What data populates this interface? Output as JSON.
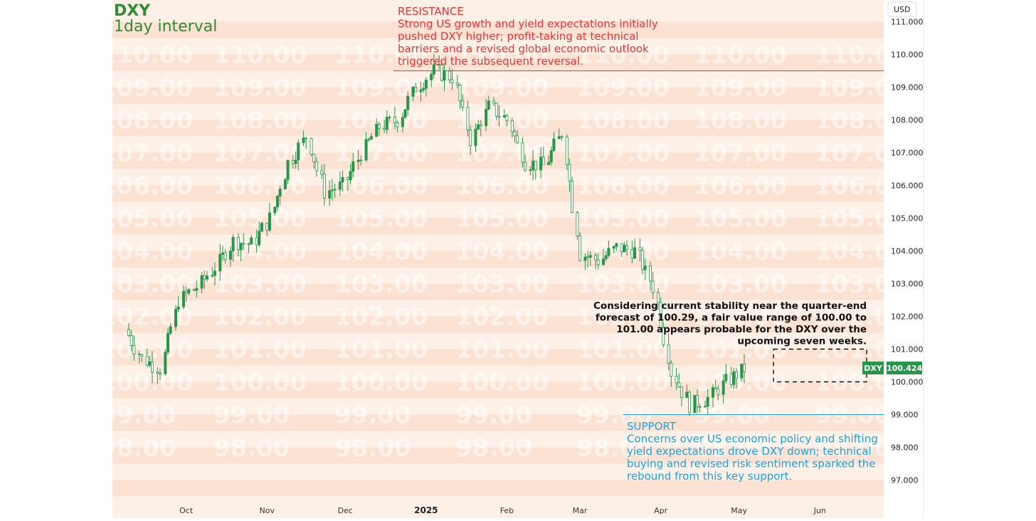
{
  "chart_data": {
    "type": "candlestick",
    "symbol": "DXY",
    "interval": "1day interval",
    "currency": "USD",
    "last_price": "100.424",
    "ylim": [
      96.5,
      111.5
    ],
    "y_ticks": [
      "111.000",
      "110.000",
      "109.000",
      "108.000",
      "107.000",
      "106.000",
      "105.000",
      "104.000",
      "103.000",
      "102.000",
      "101.000",
      "100.000",
      "99.000",
      "98.000",
      "97.000"
    ],
    "x_ticks": [
      {
        "label": "Oct",
        "date": "2024-10-01",
        "bold": false
      },
      {
        "label": "Nov",
        "date": "2024-11-01",
        "bold": false
      },
      {
        "label": "Dec",
        "date": "2024-12-01",
        "bold": false
      },
      {
        "label": "2025",
        "date": "2025-01-01",
        "bold": true
      },
      {
        "label": "Feb",
        "date": "2025-02-01",
        "bold": false
      },
      {
        "label": "Mar",
        "date": "2025-03-01",
        "bold": false
      },
      {
        "label": "Apr",
        "date": "2025-04-01",
        "bold": false
      },
      {
        "label": "May",
        "date": "2025-05-01",
        "bold": false
      },
      {
        "label": "Jun",
        "date": "2025-06-01",
        "bold": false
      }
    ],
    "watermark_levels": [
      "110.00",
      "109.00",
      "108.00",
      "107.00",
      "106.00",
      "105.00",
      "104.00",
      "103.00",
      "102.00",
      "101.00",
      "100.00",
      "99.00",
      "98.00"
    ],
    "series": [
      {
        "date": "2024-09-09",
        "close": 101.6
      },
      {
        "date": "2024-09-16",
        "close": 100.7
      },
      {
        "date": "2024-09-23",
        "close": 100.4
      },
      {
        "date": "2024-09-30",
        "close": 102.5
      },
      {
        "date": "2024-10-07",
        "close": 102.9
      },
      {
        "date": "2024-10-14",
        "close": 103.5
      },
      {
        "date": "2024-10-21",
        "close": 104.3
      },
      {
        "date": "2024-10-28",
        "close": 104.2
      },
      {
        "date": "2024-11-04",
        "close": 105.0
      },
      {
        "date": "2024-11-11",
        "close": 106.7
      },
      {
        "date": "2024-11-18",
        "close": 107.5
      },
      {
        "date": "2024-11-25",
        "close": 105.8
      },
      {
        "date": "2024-12-02",
        "close": 106.0
      },
      {
        "date": "2024-12-09",
        "close": 107.0
      },
      {
        "date": "2024-12-16",
        "close": 107.8
      },
      {
        "date": "2024-12-23",
        "close": 108.0
      },
      {
        "date": "2024-12-30",
        "close": 109.0
      },
      {
        "date": "2025-01-06",
        "close": 109.5
      },
      {
        "date": "2025-01-13",
        "close": 109.3
      },
      {
        "date": "2025-01-20",
        "close": 107.4
      },
      {
        "date": "2025-01-27",
        "close": 108.4
      },
      {
        "date": "2025-02-03",
        "close": 108.0
      },
      {
        "date": "2025-02-10",
        "close": 106.7
      },
      {
        "date": "2025-02-17",
        "close": 106.6
      },
      {
        "date": "2025-02-24",
        "close": 107.6
      },
      {
        "date": "2025-03-03",
        "close": 103.9
      },
      {
        "date": "2025-03-10",
        "close": 103.7
      },
      {
        "date": "2025-03-17",
        "close": 104.1
      },
      {
        "date": "2025-03-24",
        "close": 104.0
      },
      {
        "date": "2025-03-31",
        "close": 102.9
      },
      {
        "date": "2025-04-07",
        "close": 100.3
      },
      {
        "date": "2025-04-14",
        "close": 99.3
      },
      {
        "date": "2025-04-21",
        "close": 99.5
      },
      {
        "date": "2025-04-28",
        "close": 100.0
      },
      {
        "date": "2025-05-05",
        "close": 100.4
      }
    ],
    "resistance": {
      "level": 109.5,
      "title": "RESISTANCE",
      "lines": [
        "Strong US growth and yield expectations initially",
        "pushed DXY higher; profit-taking at technical",
        "barriers and a revised global economic outlook",
        "triggered the subsequent reversal."
      ],
      "color": "#f03030"
    },
    "support": {
      "level": 99.0,
      "title": "SUPPORT",
      "lines": [
        "Concerns over US economic policy and shifting",
        "yield expectations drove DXY down; technical",
        "buying and revised risk sentiment sparked the",
        "rebound from this key support."
      ],
      "color": "#1aa3e0"
    },
    "forecast": {
      "lines": [
        "Considering current stability near the quarter-end",
        "forecast of 100.29, a fair value range of 100.00 to",
        "101.00 appears probable for the DXY over the",
        "upcoming seven weeks."
      ],
      "range": [
        100.0,
        101.0
      ],
      "start": "2025-05-12",
      "end": "2025-06-30"
    },
    "colors": {
      "up": "#26964a",
      "down": "#26964a",
      "band_a": "#fbe2d2",
      "band_b": "#fdeee4",
      "price_tag": "#26964a"
    }
  }
}
